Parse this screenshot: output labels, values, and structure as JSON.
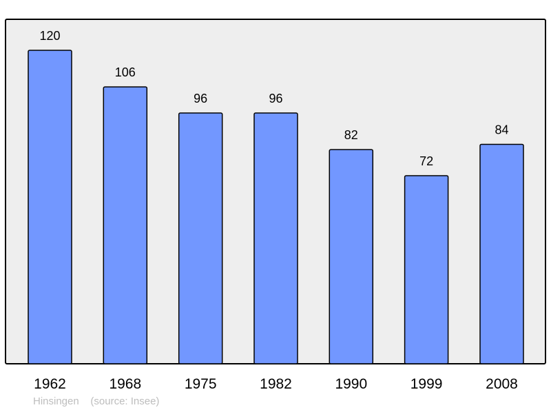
{
  "chart_data": {
    "type": "bar",
    "categories": [
      "1962",
      "1968",
      "1975",
      "1982",
      "1990",
      "1999",
      "2008"
    ],
    "values": [
      120,
      106,
      96,
      96,
      82,
      72,
      84
    ],
    "data_labels": [
      "120",
      "106",
      "96",
      "96",
      "82",
      "72",
      "84"
    ],
    "title": "",
    "xlabel": "",
    "ylabel": "",
    "ylim": [
      0,
      132
    ],
    "grid": false,
    "legend": "none"
  },
  "caption": {
    "place": "Hinsingen",
    "source": "(source: Insee)"
  },
  "colors": {
    "bar": "#7297ff",
    "plot_background": "#eeeeee",
    "frame": "#000000",
    "caption_text": "#bdbdbd"
  }
}
